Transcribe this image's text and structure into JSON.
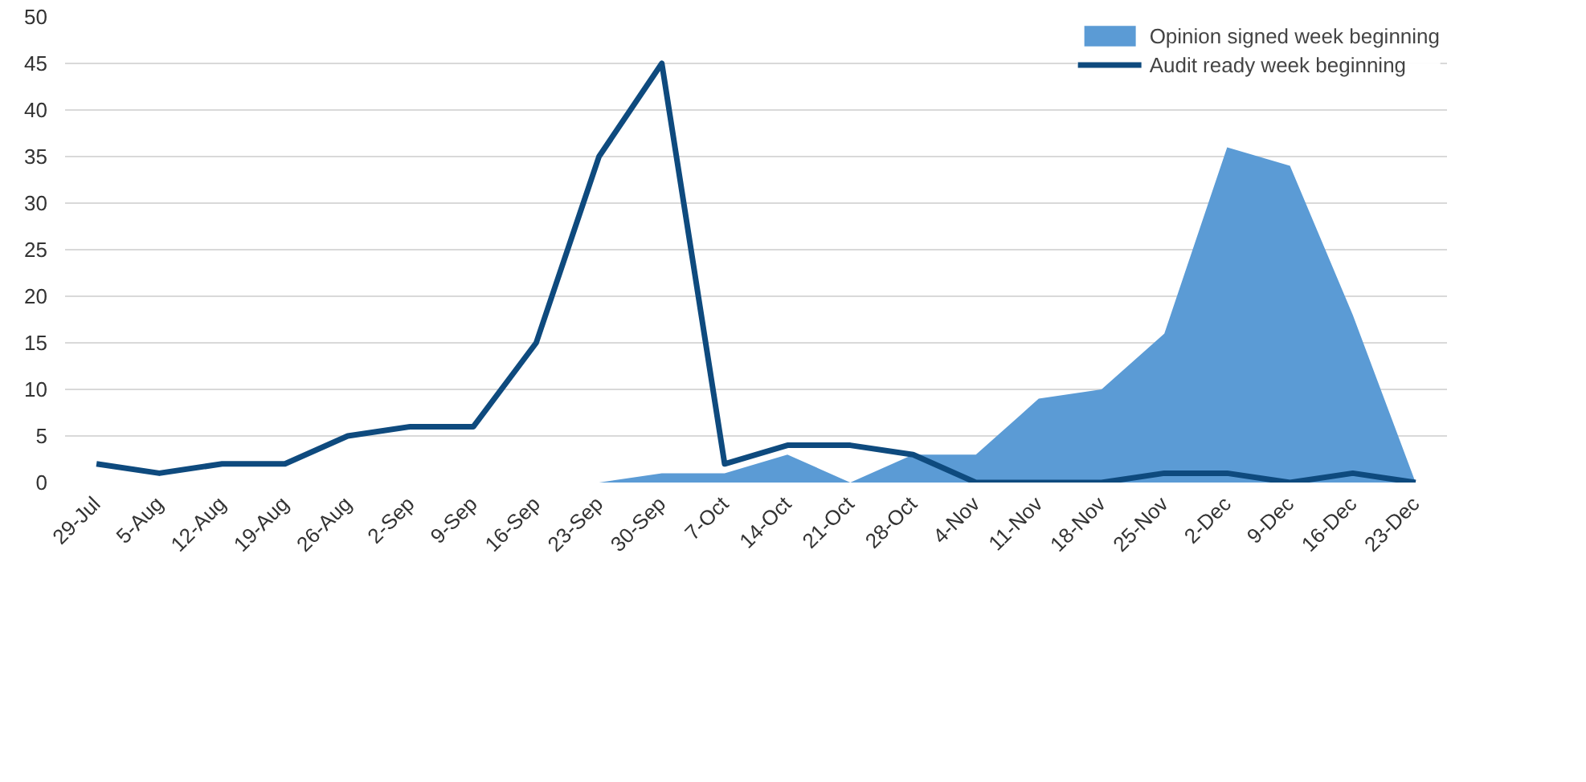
{
  "chart_data": {
    "type": "line",
    "categories": [
      "29-Jul",
      "5-Aug",
      "12-Aug",
      "19-Aug",
      "26-Aug",
      "2-Sep",
      "9-Sep",
      "16-Sep",
      "23-Sep",
      "30-Sep",
      "7-Oct",
      "14-Oct",
      "21-Oct",
      "28-Oct",
      "4-Nov",
      "11-Nov",
      "18-Nov",
      "25-Nov",
      "2-Dec",
      "9-Dec",
      "16-Dec",
      "23-Dec"
    ],
    "series": [
      {
        "name": "Opinion signed week beginning",
        "type": "area",
        "color": "#5b9bd5",
        "values": [
          null,
          null,
          null,
          null,
          null,
          null,
          null,
          null,
          0,
          1,
          1,
          3,
          0,
          3,
          3,
          9,
          10,
          16,
          36,
          34,
          18,
          0
        ]
      },
      {
        "name": "Audit ready week beginning",
        "color": "#0e4a7e",
        "values": [
          2,
          1,
          2,
          2,
          5,
          6,
          6,
          15,
          35,
          45,
          2,
          4,
          4,
          3,
          0,
          0,
          0,
          1,
          1,
          0,
          1,
          0
        ]
      }
    ],
    "ylim": [
      0,
      50
    ],
    "yticks": [
      0,
      5,
      10,
      15,
      20,
      25,
      30,
      35,
      40,
      45,
      50
    ],
    "grid": "y",
    "legend": "top right"
  }
}
